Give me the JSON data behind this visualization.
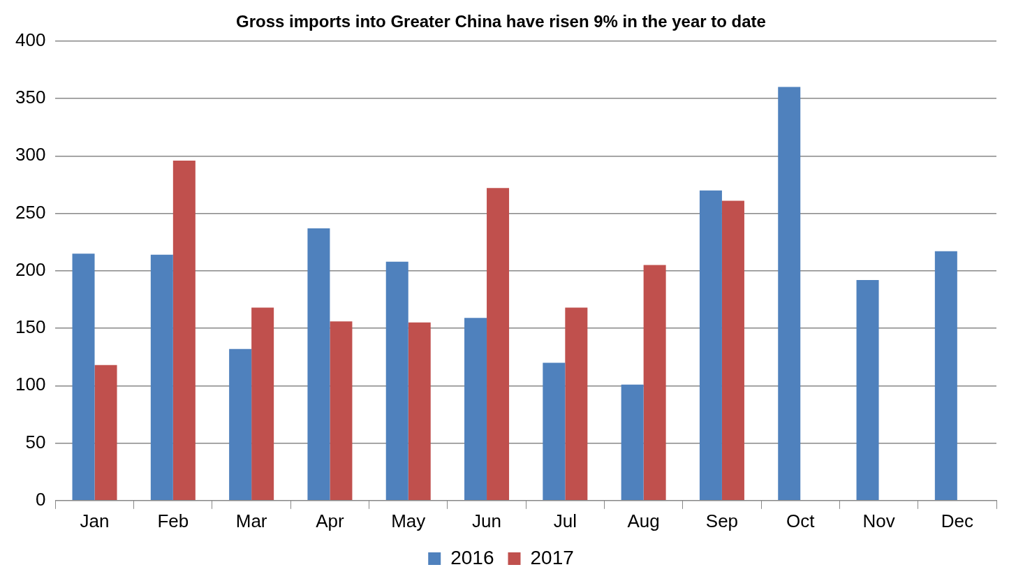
{
  "chart_data": {
    "type": "bar",
    "title": "Gross imports into Greater China have risen 9% in the year to date",
    "categories": [
      "Jan",
      "Feb",
      "Mar",
      "Apr",
      "May",
      "Jun",
      "Jul",
      "Aug",
      "Sep",
      "Oct",
      "Nov",
      "Dec"
    ],
    "series": [
      {
        "name": "2016",
        "color": "#4f81bd",
        "values": [
          215,
          214,
          132,
          237,
          208,
          159,
          120,
          101,
          270,
          360,
          192,
          217
        ]
      },
      {
        "name": "2017",
        "color": "#c0504d",
        "values": [
          118,
          296,
          168,
          156,
          155,
          272,
          168,
          205,
          261,
          null,
          null,
          null
        ]
      }
    ],
    "ylim": [
      0,
      400
    ],
    "yticks": [
      0,
      50,
      100,
      150,
      200,
      250,
      300,
      350,
      400
    ],
    "grid": "y",
    "legend": "bottom"
  }
}
